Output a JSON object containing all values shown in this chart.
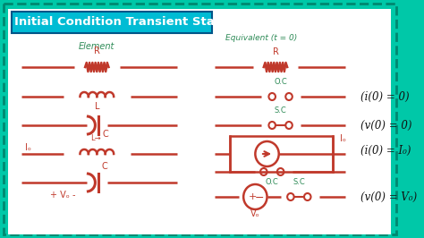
{
  "title": "Initial Condition Transient State",
  "title_bg": "#00bcd4",
  "title_color": "white",
  "outer_bg": "#00c8a8",
  "inner_bg": "#ffffff",
  "border_color": "#00c8a8",
  "element_label": "Element",
  "equiv_label": "Equivalent (t = 0)",
  "element_color": "#c0392b",
  "label_color": "#2e8b57",
  "annotation_color": "#111111",
  "ann0": "(i(0) = 0)",
  "ann1": "(v(0) = 0)",
  "ann2": "(i(0) = I₀)",
  "ann3": "(v(0) = V₀)"
}
